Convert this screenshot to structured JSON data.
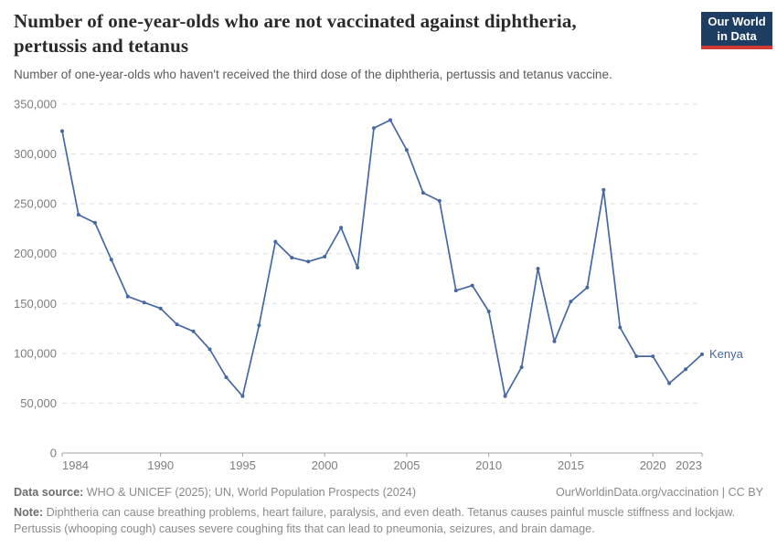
{
  "header": {
    "title_line1": "Number of one-year-olds who are not vaccinated against diphtheria,",
    "title_line2": "pertussis and tetanus",
    "subtitle": "Number of one-year-olds who haven't received the third dose of the diphtheria, pertussis and tetanus vaccine.",
    "logo": {
      "line1": "Our World",
      "line2": "in Data",
      "bg_color": "#1d3d63",
      "accent_color": "#cf3b32"
    }
  },
  "chart_data": {
    "type": "line",
    "title": "Number of one-year-olds who are not vaccinated against diphtheria, pertussis and tetanus",
    "xlabel": "",
    "ylabel": "",
    "xlim": [
      1984,
      2023
    ],
    "ylim": [
      0,
      350000
    ],
    "xticks": [
      1984,
      1990,
      1995,
      2000,
      2005,
      2010,
      2015,
      2020,
      2023
    ],
    "yticks": [
      0,
      50000,
      100000,
      150000,
      200000,
      250000,
      300000,
      350000
    ],
    "grid": "horizontal-dashed",
    "legend_position": "end-of-line-label",
    "series": [
      {
        "name": "Kenya",
        "color": "#4668a2",
        "x": [
          1984,
          1985,
          1986,
          1987,
          1988,
          1989,
          1990,
          1991,
          1992,
          1993,
          1994,
          1995,
          1996,
          1997,
          1998,
          1999,
          2000,
          2001,
          2002,
          2003,
          2004,
          2005,
          2006,
          2007,
          2008,
          2009,
          2010,
          2011,
          2012,
          2013,
          2014,
          2015,
          2016,
          2017,
          2018,
          2019,
          2020,
          2021,
          2022,
          2023
        ],
        "y": [
          323000,
          239000,
          231000,
          194000,
          157000,
          151000,
          145000,
          129000,
          122000,
          104000,
          76000,
          57000,
          128000,
          212000,
          196000,
          192000,
          197000,
          226000,
          186000,
          326000,
          334000,
          304000,
          261000,
          253000,
          163000,
          168000,
          142000,
          57000,
          86000,
          185000,
          112000,
          152000,
          166000,
          264000,
          126000,
          97000,
          97000,
          70000,
          84000,
          99000
        ]
      }
    ]
  },
  "theme": {
    "grid_color": "#dddddd",
    "axis_color": "#a3a3a3",
    "tick_label_color": "#7d7d7d",
    "line_color": "#4668a2"
  },
  "footer": {
    "data_source_label": "Data source:",
    "data_source_text": " WHO & UNICEF (2025); UN, World Population Prospects (2024)",
    "attribution": "OurWorldinData.org/vaccination | CC BY",
    "note_label": "Note:",
    "note_text": " Diphtheria can cause breathing problems, heart failure, paralysis, and even death. Tetanus causes painful muscle stiffness and lockjaw. Pertussis (whooping cough) causes severe coughing fits that can lead to pneumonia, seizures, and brain damage."
  }
}
